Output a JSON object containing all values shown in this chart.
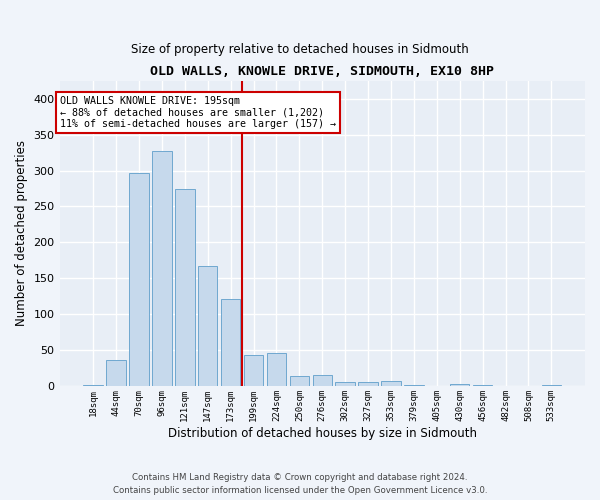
{
  "title": "OLD WALLS, KNOWLE DRIVE, SIDMOUTH, EX10 8HP",
  "subtitle": "Size of property relative to detached houses in Sidmouth",
  "xlabel": "Distribution of detached houses by size in Sidmouth",
  "ylabel": "Number of detached properties",
  "bar_labels": [
    "18sqm",
    "44sqm",
    "70sqm",
    "96sqm",
    "121sqm",
    "147sqm",
    "173sqm",
    "199sqm",
    "224sqm",
    "250sqm",
    "276sqm",
    "302sqm",
    "327sqm",
    "353sqm",
    "379sqm",
    "405sqm",
    "430sqm",
    "456sqm",
    "482sqm",
    "508sqm",
    "533sqm"
  ],
  "bar_values": [
    2,
    37,
    297,
    327,
    275,
    167,
    121,
    44,
    46,
    15,
    16,
    6,
    6,
    8,
    2,
    1,
    3,
    2,
    1,
    0,
    2
  ],
  "bar_color": "#c6d9ec",
  "bar_edge_color": "#6fa8d0",
  "vline_bin_index": 7,
  "vline_color": "#cc0000",
  "annotation_title": "OLD WALLS KNOWLE DRIVE: 195sqm",
  "annotation_line1": "← 88% of detached houses are smaller (1,202)",
  "annotation_line2": "11% of semi-detached houses are larger (157) →",
  "annotation_box_facecolor": "#ffffff",
  "annotation_box_edgecolor": "#cc0000",
  "background_color": "#e8eef6",
  "grid_color": "#ffffff",
  "fig_facecolor": "#f0f4fa",
  "ylim": [
    0,
    425
  ],
  "yticks": [
    0,
    50,
    100,
    150,
    200,
    250,
    300,
    350,
    400
  ],
  "footer_line1": "Contains HM Land Registry data © Crown copyright and database right 2024.",
  "footer_line2": "Contains public sector information licensed under the Open Government Licence v3.0."
}
